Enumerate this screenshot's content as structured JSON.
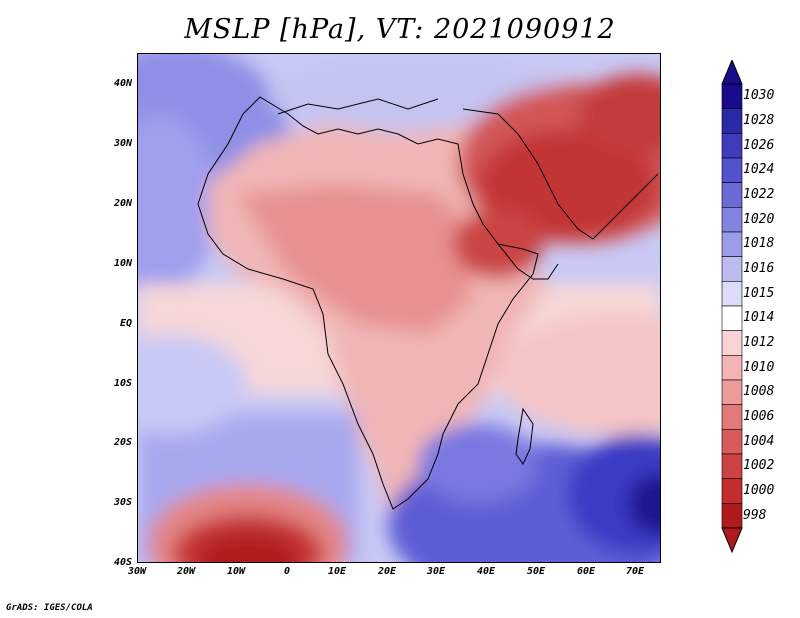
{
  "title": "MSLP [hPa], VT: 2021090912",
  "credit": "GrADS: IGES/COLA",
  "lat_ticks": [
    "40N",
    "30N",
    "20N",
    "10N",
    "EQ",
    "10S",
    "20S",
    "30S",
    "40S"
  ],
  "lon_ticks": [
    "30W",
    "20W",
    "10W",
    "0",
    "10E",
    "20E",
    "30E",
    "40E",
    "50E",
    "60E",
    "70E"
  ],
  "colorbar": {
    "labels": [
      "1030",
      "1028",
      "1026",
      "1024",
      "1022",
      "1020",
      "1018",
      "1016",
      "1015",
      "1014",
      "1012",
      "1010",
      "1008",
      "1006",
      "1004",
      "1002",
      "1000",
      "998"
    ],
    "colors": [
      "#1a0a8c",
      "#2a2aa8",
      "#3c3cbd",
      "#5252cc",
      "#6b6bd8",
      "#8383e2",
      "#9c9ceb",
      "#bcbcf3",
      "#dcdcf8",
      "#ffffff",
      "#f9d3d3",
      "#f3b3b3",
      "#ec9a9a",
      "#e27a7a",
      "#d85a5a",
      "#cf4242",
      "#c52c2c",
      "#b01a1a"
    ]
  },
  "regions": {
    "north_atlantic_high": "1020",
    "north_africa_saharan": "1008",
    "arabian_low": "1000",
    "equatorial_belt": "1012",
    "south_atlantic_ridge": "1018",
    "south_indian_high": "1026",
    "south_atlantic_low_core": "998"
  }
}
